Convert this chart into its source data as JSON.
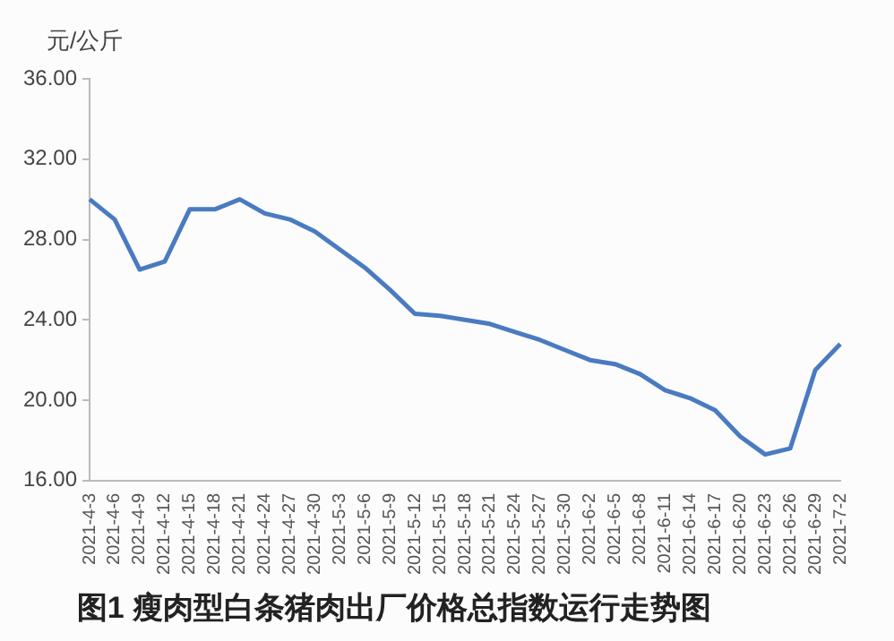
{
  "chart_data": {
    "type": "line",
    "title": "图1 瘦肉型白条猪肉出厂价格总指数运行走势图",
    "ylabel": "元/公斤",
    "categories": [
      "2021-4-3",
      "2021-4-6",
      "2021-4-9",
      "2021-4-12",
      "2021-4-15",
      "2021-4-18",
      "2021-4-21",
      "2021-4-24",
      "2021-4-27",
      "2021-4-30",
      "2021-5-3",
      "2021-5-6",
      "2021-5-9",
      "2021-5-12",
      "2021-5-15",
      "2021-5-18",
      "2021-5-21",
      "2021-5-24",
      "2021-5-27",
      "2021-5-30",
      "2021-6-2",
      "2021-6-5",
      "2021-6-8",
      "2021-6-11",
      "2021-6-14",
      "2021-6-17",
      "2021-6-20",
      "2021-6-23",
      "2021-6-26",
      "2021-6-29",
      "2021-7-2"
    ],
    "series": [
      {
        "color": "#4a7bc0",
        "values": [
          30.0,
          29.0,
          26.5,
          26.9,
          29.5,
          29.5,
          30.0,
          29.3,
          29.0,
          28.4,
          27.5,
          26.6,
          25.5,
          24.3,
          24.2,
          24.0,
          23.8,
          23.4,
          23.0,
          22.5,
          22.0,
          21.8,
          21.3,
          20.5,
          20.1,
          19.5,
          18.2,
          17.3,
          17.6,
          21.5,
          22.8
        ]
      }
    ],
    "ylim": [
      16,
      36
    ],
    "yticks": [
      {
        "value": 16,
        "label": "16.00"
      },
      {
        "value": 20,
        "label": "20.00"
      },
      {
        "value": 24,
        "label": "24.00"
      },
      {
        "value": 28,
        "label": "28.00"
      },
      {
        "value": 32,
        "label": "32.00"
      },
      {
        "value": 36,
        "label": "36.00"
      }
    ],
    "grid": false,
    "legend": false,
    "marker": "none",
    "line_style": "solid"
  }
}
